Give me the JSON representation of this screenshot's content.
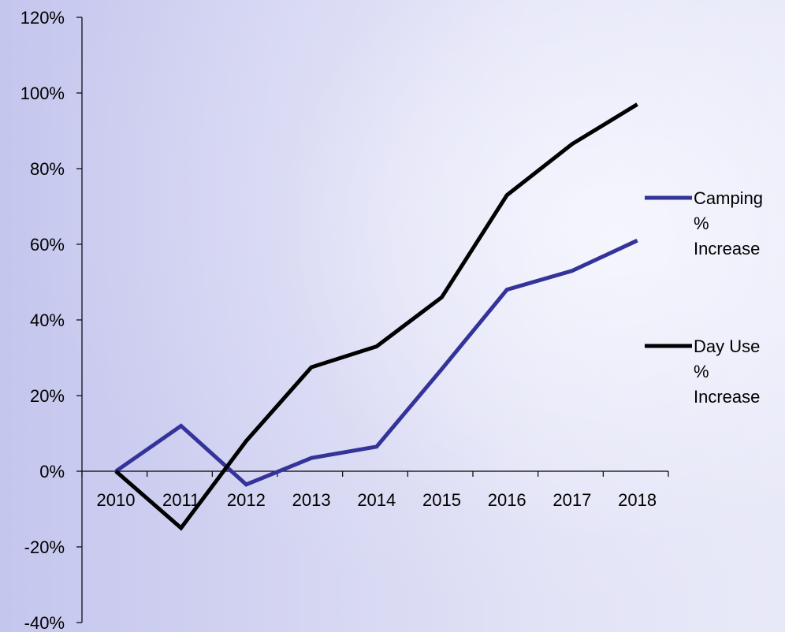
{
  "chart_data": {
    "type": "line",
    "title": "",
    "xlabel": "",
    "ylabel": "",
    "categories": [
      "2010",
      "2011",
      "2012",
      "2013",
      "2014",
      "2015",
      "2016",
      "2017",
      "2018"
    ],
    "ylim": [
      -0.4,
      1.2
    ],
    "yticks": [
      -0.4,
      -0.2,
      0,
      0.2,
      0.4,
      0.6,
      0.8,
      1.0,
      1.2
    ],
    "ytick_labels": [
      "-40%",
      "-20%",
      "0%",
      "20%",
      "40%",
      "60%",
      "80%",
      "100%",
      "120%"
    ],
    "grid": false,
    "legend_position": "right",
    "series": [
      {
        "name": "Camping % Increase",
        "name_lines": [
          "Camping",
          "%",
          "Increase"
        ],
        "color": "#333399",
        "values": [
          0.0,
          0.12,
          -0.035,
          0.035,
          0.065,
          0.27,
          0.48,
          0.53,
          0.61
        ]
      },
      {
        "name": "Day Use % Increase",
        "name_lines": [
          "Day Use",
          "%",
          "Increase"
        ],
        "color": "#000000",
        "values": [
          0.0,
          -0.15,
          0.08,
          0.275,
          0.33,
          0.46,
          0.73,
          0.865,
          0.97
        ]
      }
    ]
  }
}
